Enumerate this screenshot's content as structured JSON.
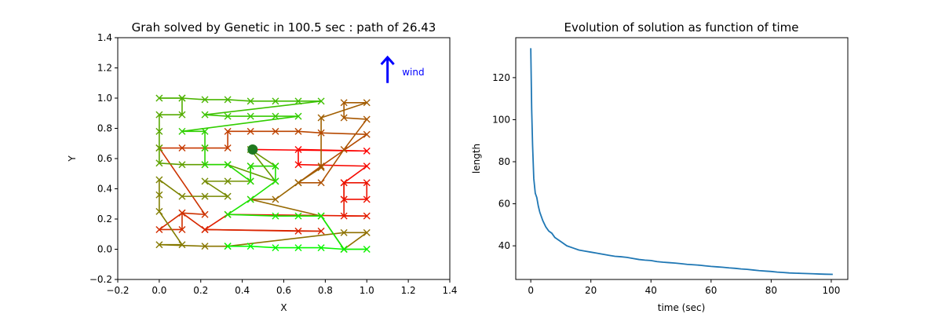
{
  "chart_data": [
    {
      "type": "line",
      "title": "Grah solved by Genetic in 100.5 sec : path of 26.43",
      "xlabel": "X",
      "ylabel": "Y",
      "xlim": [
        -0.2,
        1.4
      ],
      "ylim": [
        -0.2,
        1.4
      ],
      "xticks": [
        "−0.2",
        "0.0",
        "0.2",
        "0.4",
        "0.6",
        "0.8",
        "1.0",
        "1.2",
        "1.4"
      ],
      "yticks": [
        "−0.2",
        "0.0",
        "0.2",
        "0.4",
        "0.6",
        "0.8",
        "1.0",
        "1.2",
        "1.4"
      ],
      "grid": false,
      "start_point": {
        "x": 0.45,
        "y": 0.66,
        "color": "#1f7a1f"
      },
      "marker": "x",
      "path_color_start": "#ff0000",
      "path_color_end": "#00ff00",
      "annotation": {
        "text": "wind",
        "x": 1.17,
        "y": 1.15,
        "color": "#0000ff"
      },
      "wind_arrow": {
        "x": 1.1,
        "y_from": 1.1,
        "y_to": 1.27,
        "color": "#0000ff"
      },
      "path": [
        [
          0.45,
          0.66
        ],
        [
          1.0,
          0.65
        ],
        [
          0.67,
          0.66
        ],
        [
          0.67,
          0.56
        ],
        [
          1.0,
          0.55
        ],
        [
          0.89,
          0.44
        ],
        [
          0.89,
          0.33
        ],
        [
          1.0,
          0.33
        ],
        [
          1.0,
          0.44
        ],
        [
          0.89,
          0.44
        ],
        [
          0.89,
          0.33
        ],
        [
          0.89,
          0.22
        ],
        [
          1.0,
          0.22
        ],
        [
          0.33,
          0.23
        ],
        [
          0.22,
          0.13
        ],
        [
          0.67,
          0.12
        ],
        [
          0.78,
          0.12
        ],
        [
          0.22,
          0.13
        ],
        [
          0.11,
          0.24
        ],
        [
          0.0,
          0.13
        ],
        [
          0.11,
          0.13
        ],
        [
          0.11,
          0.24
        ],
        [
          0.22,
          0.23
        ],
        [
          0.0,
          0.67
        ],
        [
          0.11,
          0.67
        ],
        [
          0.22,
          0.67
        ],
        [
          0.33,
          0.67
        ],
        [
          0.33,
          0.78
        ],
        [
          0.44,
          0.78
        ],
        [
          0.56,
          0.78
        ],
        [
          0.67,
          0.78
        ],
        [
          0.78,
          0.77
        ],
        [
          1.0,
          0.76
        ],
        [
          0.78,
          0.55
        ],
        [
          0.67,
          0.44
        ],
        [
          0.78,
          0.44
        ],
        [
          0.89,
          0.66
        ],
        [
          1.0,
          0.86
        ],
        [
          0.89,
          0.87
        ],
        [
          0.89,
          0.97
        ],
        [
          1.0,
          0.97
        ],
        [
          0.78,
          0.87
        ],
        [
          0.78,
          0.54
        ],
        [
          0.67,
          0.44
        ],
        [
          0.56,
          0.33
        ],
        [
          0.44,
          0.33
        ],
        [
          0.78,
          0.22
        ],
        [
          0.89,
          0.0
        ],
        [
          1.0,
          0.11
        ],
        [
          0.89,
          0.11
        ],
        [
          0.33,
          0.02
        ],
        [
          0.22,
          0.02
        ],
        [
          0.0,
          0.03
        ],
        [
          0.11,
          0.03
        ],
        [
          0.0,
          0.25
        ],
        [
          0.0,
          0.36
        ],
        [
          0.0,
          0.46
        ],
        [
          0.11,
          0.35
        ],
        [
          0.22,
          0.35
        ],
        [
          0.33,
          0.35
        ],
        [
          0.22,
          0.45
        ],
        [
          0.33,
          0.45
        ],
        [
          0.44,
          0.45
        ],
        [
          0.44,
          0.55
        ],
        [
          0.56,
          0.55
        ],
        [
          0.44,
          0.66
        ],
        [
          0.56,
          0.45
        ],
        [
          0.33,
          0.56
        ],
        [
          0.22,
          0.56
        ],
        [
          0.11,
          0.56
        ],
        [
          0.0,
          0.57
        ],
        [
          0.0,
          0.67
        ],
        [
          0.0,
          0.78
        ],
        [
          0.0,
          0.89
        ],
        [
          0.11,
          0.89
        ],
        [
          0.11,
          1.0
        ],
        [
          0.0,
          1.0
        ],
        [
          0.11,
          1.0
        ],
        [
          0.22,
          0.99
        ],
        [
          0.33,
          0.99
        ],
        [
          0.44,
          0.98
        ],
        [
          0.56,
          0.98
        ],
        [
          0.67,
          0.98
        ],
        [
          0.78,
          0.98
        ],
        [
          0.22,
          0.89
        ],
        [
          0.33,
          0.88
        ],
        [
          0.44,
          0.88
        ],
        [
          0.56,
          0.88
        ],
        [
          0.67,
          0.88
        ],
        [
          0.11,
          0.78
        ],
        [
          0.22,
          0.78
        ],
        [
          0.22,
          0.67
        ],
        [
          0.22,
          0.56
        ],
        [
          0.33,
          0.56
        ],
        [
          0.44,
          0.45
        ],
        [
          0.44,
          0.55
        ],
        [
          0.56,
          0.55
        ],
        [
          0.56,
          0.45
        ],
        [
          0.44,
          0.33
        ],
        [
          0.33,
          0.23
        ],
        [
          0.56,
          0.22
        ],
        [
          0.67,
          0.22
        ],
        [
          0.78,
          0.22
        ],
        [
          0.89,
          0.0
        ],
        [
          1.0,
          0.0
        ],
        [
          0.89,
          0.0
        ],
        [
          0.78,
          0.01
        ],
        [
          0.67,
          0.01
        ],
        [
          0.56,
          0.01
        ],
        [
          0.44,
          0.02
        ],
        [
          0.33,
          0.02
        ]
      ]
    },
    {
      "type": "line",
      "title": "Evolution of solution as function of time",
      "xlabel": "time (sec)",
      "ylabel": "length",
      "xlim": [
        -5,
        105.5
      ],
      "ylim": [
        24,
        139
      ],
      "xticks": [
        "0",
        "20",
        "40",
        "60",
        "80",
        "100"
      ],
      "yticks": [
        "40",
        "60",
        "80",
        "100",
        "120"
      ],
      "grid": false,
      "color": "#1f77b4",
      "series": [
        {
          "x": [
            0,
            0.3,
            0.6,
            1,
            1.5,
            2,
            2.5,
            3,
            3.5,
            4,
            5,
            6,
            7,
            8,
            9,
            10,
            12,
            14,
            16,
            18,
            20,
            22,
            24,
            26,
            28,
            30,
            32,
            34,
            36,
            38,
            40,
            42,
            44,
            46,
            48,
            50,
            52,
            54,
            56,
            58,
            60,
            62,
            64,
            66,
            68,
            70,
            72,
            74,
            76,
            78,
            80,
            82,
            84,
            86,
            88,
            90,
            92,
            94,
            96,
            98,
            100.5
          ],
          "y": [
            134,
            105,
            88,
            72,
            65,
            63,
            59,
            56,
            54,
            52,
            49,
            47,
            46,
            44,
            43,
            42,
            40,
            39,
            38,
            37.5,
            37,
            36.5,
            36,
            35.5,
            35,
            34.8,
            34.5,
            34,
            33.5,
            33.2,
            33,
            32.5,
            32.2,
            32,
            31.8,
            31.5,
            31.2,
            31,
            30.8,
            30.5,
            30.2,
            30,
            29.8,
            29.5,
            29.3,
            29,
            28.8,
            28.5,
            28.2,
            28,
            27.8,
            27.5,
            27.3,
            27.1,
            27,
            26.9,
            26.8,
            26.7,
            26.6,
            26.5,
            26.43
          ]
        }
      ]
    }
  ]
}
